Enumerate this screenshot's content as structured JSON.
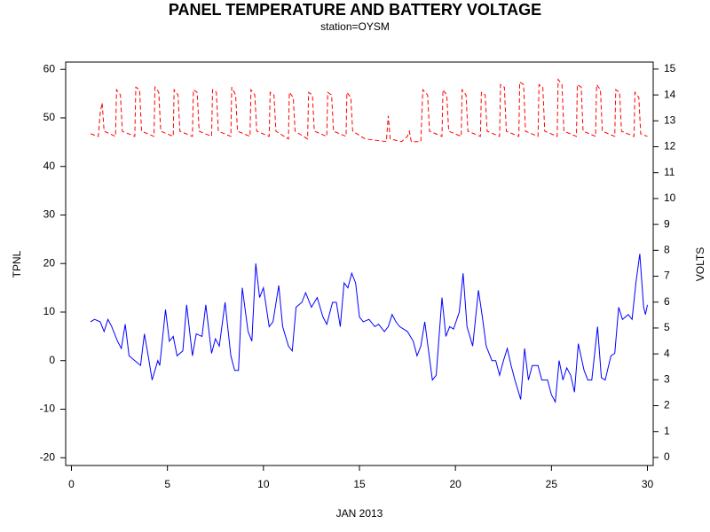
{
  "chart_data": {
    "type": "line",
    "title": "PANEL TEMPERATURE AND BATTERY VOLTAGE",
    "subtitle": "station=OYSM",
    "x_label": "JAN 2013",
    "y_label": "TPNL",
    "y2_label": "VOLTS",
    "xlim": [
      -0.3,
      30.3
    ],
    "xticks": [
      0,
      5,
      10,
      15,
      20,
      25,
      30
    ],
    "ylim": [
      -21.6,
      61.5
    ],
    "yticks": [
      -20,
      -10,
      0,
      10,
      20,
      30,
      40,
      50,
      60
    ],
    "y2lim": [
      -0.31,
      15.27
    ],
    "y2ticks": [
      0,
      1,
      2,
      3,
      4,
      5,
      6,
      7,
      8,
      9,
      10,
      11,
      12,
      13,
      14,
      15
    ],
    "grid": false,
    "series": [
      {
        "color": "#0000ff",
        "line_style": "solid",
        "axis": "y",
        "x": [
          1.0,
          1.2,
          1.5,
          1.7,
          1.9,
          2.1,
          2.4,
          2.6,
          2.8,
          3.0,
          3.3,
          3.6,
          3.8,
          4.0,
          4.2,
          4.5,
          4.6,
          4.9,
          5.1,
          5.3,
          5.5,
          5.8,
          6.0,
          6.3,
          6.5,
          6.8,
          7.0,
          7.3,
          7.5,
          7.7,
          8.0,
          8.3,
          8.5,
          8.7,
          8.9,
          9.2,
          9.4,
          9.6,
          9.8,
          10.0,
          10.3,
          10.5,
          10.8,
          11.0,
          11.3,
          11.5,
          11.7,
          12.0,
          12.2,
          12.5,
          12.8,
          13.1,
          13.3,
          13.6,
          13.8,
          14.0,
          14.2,
          14.4,
          14.6,
          14.8,
          15.0,
          15.2,
          15.5,
          15.8,
          16.0,
          16.3,
          16.5,
          16.7,
          16.9,
          17.1,
          17.5,
          17.8,
          18.0,
          18.2,
          18.4,
          18.6,
          18.8,
          19.0,
          19.3,
          19.5,
          19.7,
          19.9,
          20.2,
          20.4,
          20.6,
          20.9,
          21.2,
          21.4,
          21.6,
          21.9,
          22.1,
          22.3,
          22.5,
          22.7,
          22.9,
          23.1,
          23.4,
          23.6,
          23.8,
          24.0,
          24.3,
          24.5,
          24.8,
          25.0,
          25.2,
          25.4,
          25.6,
          25.8,
          26.0,
          26.2,
          26.4,
          26.7,
          26.9,
          27.1,
          27.4,
          27.6,
          27.8,
          28.1,
          28.3,
          28.5,
          28.7,
          29.0,
          29.2,
          29.4,
          29.6,
          29.8,
          29.9,
          30.0
        ],
        "values": [
          8,
          8.5,
          8,
          6,
          8.5,
          7,
          4,
          2.5,
          7.5,
          1,
          0,
          -1,
          5.5,
          1,
          -4,
          0,
          -1,
          10.5,
          4,
          5,
          1,
          2,
          11.5,
          1,
          5.5,
          5,
          11.5,
          1.5,
          4.5,
          3,
          12,
          1,
          -2,
          -2,
          15,
          6,
          4,
          20,
          13,
          15,
          7,
          8,
          15.5,
          7,
          3,
          2,
          11,
          12,
          14,
          11,
          13,
          9,
          7.5,
          12,
          12,
          7,
          16,
          15,
          18,
          16,
          9,
          8,
          8.5,
          7,
          7.5,
          6,
          7,
          9.5,
          8,
          7,
          6,
          4,
          1,
          3,
          8,
          2,
          -4,
          -3,
          13,
          5,
          7,
          6.5,
          10,
          18,
          7,
          3,
          14.5,
          9,
          3,
          0,
          0,
          -3,
          0,
          2.5,
          -1,
          -4,
          -8,
          2.5,
          -4,
          -1,
          -1,
          -4,
          -4,
          -7,
          -8.5,
          0,
          -4,
          -1.5,
          -3,
          -6.5,
          3.5,
          -2,
          -4,
          -4,
          7,
          -3.5,
          -4,
          1,
          1.5,
          11,
          8.5,
          9.5,
          8.5,
          16,
          22,
          11,
          9.5,
          11.5
        ]
      },
      {
        "color": "#ff0000",
        "line_style": "dashed",
        "axis": "y2",
        "x": [
          1.0,
          1.4,
          1.5,
          1.6,
          1.7,
          2.3,
          2.35,
          2.55,
          2.65,
          3.3,
          3.35,
          3.55,
          3.65,
          4.3,
          4.35,
          4.55,
          4.65,
          5.3,
          5.35,
          5.55,
          5.65,
          6.3,
          6.35,
          6.55,
          6.65,
          7.3,
          7.35,
          7.55,
          7.65,
          8.3,
          8.35,
          8.55,
          8.65,
          9.3,
          9.35,
          9.55,
          9.65,
          10.3,
          10.35,
          10.55,
          10.65,
          11.3,
          11.35,
          11.55,
          11.65,
          12.3,
          12.35,
          12.55,
          12.65,
          13.3,
          13.35,
          13.55,
          13.65,
          14.3,
          14.35,
          14.55,
          14.65,
          15.3,
          16.4,
          16.5,
          16.6,
          17.2,
          17.5,
          17.6,
          17.7,
          18.2,
          18.3,
          18.55,
          18.65,
          19.3,
          19.35,
          19.55,
          19.65,
          20.3,
          20.35,
          20.55,
          20.65,
          21.3,
          21.35,
          21.55,
          21.65,
          22.3,
          22.35,
          22.55,
          22.65,
          23.3,
          23.35,
          23.55,
          23.65,
          24.3,
          24.35,
          24.55,
          24.65,
          25.3,
          25.35,
          25.55,
          25.65,
          26.3,
          26.35,
          26.55,
          26.65,
          27.3,
          27.35,
          27.55,
          27.65,
          28.3,
          28.35,
          28.55,
          28.65,
          29.3,
          29.35,
          29.55,
          29.65,
          30.0
        ],
        "values": [
          12.5,
          12.4,
          13.3,
          13.7,
          12.6,
          12.4,
          14.2,
          14.0,
          12.6,
          12.4,
          14.3,
          14.2,
          12.6,
          12.4,
          14.3,
          14.1,
          12.6,
          12.4,
          14.2,
          14.0,
          12.6,
          12.4,
          14.2,
          14.1,
          12.6,
          12.4,
          14.2,
          14.1,
          12.6,
          12.4,
          14.3,
          14.0,
          12.6,
          12.4,
          14.2,
          14.0,
          12.6,
          12.4,
          14.1,
          14.0,
          12.6,
          12.3,
          14.1,
          13.9,
          12.6,
          12.3,
          14.1,
          14.0,
          12.6,
          12.4,
          14.1,
          14.0,
          12.6,
          12.4,
          14.1,
          13.9,
          12.6,
          12.3,
          12.2,
          13.2,
          12.3,
          12.2,
          12.4,
          12.6,
          12.2,
          12.2,
          14.2,
          14.0,
          12.6,
          12.4,
          14.2,
          14.0,
          12.6,
          12.4,
          14.2,
          14.0,
          12.6,
          12.4,
          14.1,
          14.0,
          12.6,
          12.4,
          14.4,
          14.3,
          12.6,
          12.4,
          14.5,
          14.4,
          12.6,
          12.4,
          14.4,
          14.3,
          12.6,
          12.4,
          14.6,
          14.4,
          12.6,
          12.4,
          14.4,
          14.3,
          12.6,
          12.4,
          14.4,
          14.2,
          12.6,
          12.4,
          14.2,
          14.1,
          12.6,
          12.4,
          14.1,
          13.9,
          12.5,
          12.4
        ]
      }
    ]
  }
}
